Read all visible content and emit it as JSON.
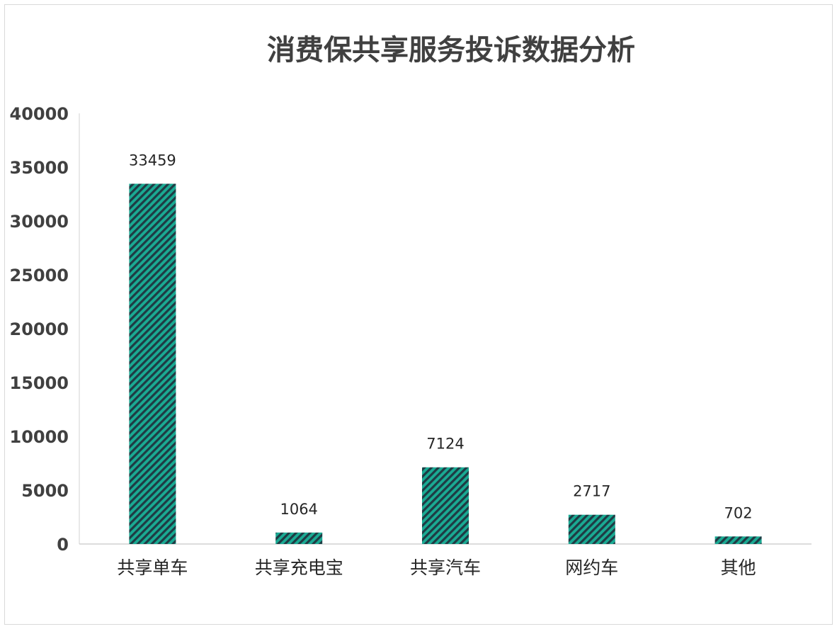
{
  "chart_data": {
    "type": "bar",
    "title": "消费保共享服务投诉数据分析",
    "categories": [
      "共享单车",
      "共享充电宝",
      "共享汽车",
      "网约车",
      "其他"
    ],
    "values": [
      33459,
      1064,
      7124,
      2717,
      702
    ],
    "data_labels": [
      "33459",
      "1064",
      "7124",
      "2717",
      "702"
    ],
    "ylim": [
      0,
      40000
    ],
    "y_ticks": [
      0,
      5000,
      10000,
      15000,
      20000,
      25000,
      30000,
      35000,
      40000
    ],
    "y_tick_labels": [
      "0",
      "5000",
      "10000",
      "15000",
      "20000",
      "25000",
      "30000",
      "35000",
      "40000"
    ],
    "grid": false,
    "legend": "none",
    "bar_fill": "diagonal-hatch",
    "colors": {
      "hatch_teal": "#1aaa93",
      "hatch_dark": "#1f3b44",
      "axis": "#d9d9d9"
    }
  }
}
